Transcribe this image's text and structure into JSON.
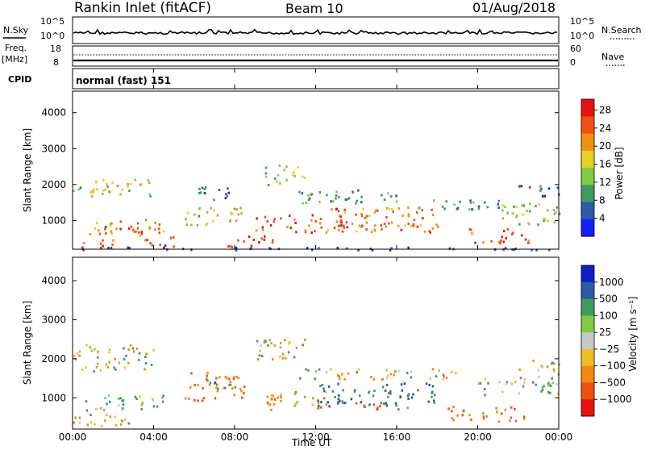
{
  "header": {
    "station": "Rankin Inlet (fitACF)",
    "beam": "Beam 10",
    "date": "01/Aug/2018"
  },
  "nsky_panel": {
    "left_label": "N.Sky",
    "right_label": "N.Search",
    "ticks_left": [
      "10^5",
      "10^0"
    ],
    "ticks_right": [
      "10^5",
      "10^0"
    ]
  },
  "freq_panel": {
    "left_label_1": "Freq.",
    "left_label_2": "[MHz]",
    "right_label": "Nave",
    "ticks_left": [
      "18",
      "8"
    ],
    "ticks_right": [
      "60",
      "0"
    ]
  },
  "cpid": {
    "label": "CPID",
    "value": "normal (fast) 151"
  },
  "x_axis": {
    "label": "Time UT",
    "ticks": [
      "00:00",
      "04:00",
      "08:00",
      "12:00",
      "16:00",
      "20:00",
      "00:00"
    ]
  },
  "colors": {
    "power_scale": [
      "#1020ff",
      "#2a5aa8",
      "#3e9a60",
      "#80cc40",
      "#e8d020",
      "#f09010",
      "#f05010",
      "#e81010"
    ],
    "velocity_scale": [
      "#e81010",
      "#f05010",
      "#f08a10",
      "#f0c020",
      "#c8c8c8",
      "#80cc40",
      "#3e9a60",
      "#2a5aa8",
      "#1020c0"
    ]
  },
  "chart_data": [
    {
      "type": "heatmap",
      "name": "power",
      "ylabel": "Slant Range [km]",
      "yticks": [
        "1000",
        "2000",
        "3000",
        "4000"
      ],
      "ylim": [
        200,
        4600
      ],
      "xlim": [
        0,
        24
      ],
      "colorbar_label": "Power [dB]",
      "colorbar_ticks": [
        "4",
        "8",
        "12",
        "16",
        "20",
        "24",
        "28"
      ],
      "colorbar_range": [
        0,
        30
      ],
      "bands": [
        {
          "t0": 0.0,
          "t1": 3.8,
          "r0": 1700,
          "r1": 2200,
          "v": 15
        },
        {
          "t0": 0.5,
          "t1": 2.5,
          "r0": 1800,
          "r1": 2000,
          "v": 22
        },
        {
          "t0": 0.8,
          "t1": 4.5,
          "r0": 600,
          "r1": 1100,
          "v": 20
        },
        {
          "t0": 1.5,
          "t1": 3.5,
          "r0": 700,
          "r1": 900,
          "v": 27
        },
        {
          "t0": 0.0,
          "t1": 2.0,
          "r0": 250,
          "r1": 500,
          "v": 26
        },
        {
          "t0": 3.5,
          "t1": 5.0,
          "r0": 300,
          "r1": 600,
          "v": 24
        },
        {
          "t0": 5.5,
          "t1": 8.5,
          "r0": 900,
          "r1": 1400,
          "v": 18
        },
        {
          "t0": 6.0,
          "t1": 8.0,
          "r0": 1600,
          "r1": 2000,
          "v": 6
        },
        {
          "t0": 7.5,
          "t1": 10.0,
          "r0": 250,
          "r1": 600,
          "v": 28
        },
        {
          "t0": 9.0,
          "t1": 12.0,
          "r0": 650,
          "r1": 1200,
          "v": 25
        },
        {
          "t0": 9.5,
          "t1": 11.5,
          "r0": 2000,
          "r1": 2600,
          "v": 14
        },
        {
          "t0": 11.0,
          "t1": 16.0,
          "r0": 1500,
          "r1": 1900,
          "v": 10
        },
        {
          "t0": 12.0,
          "t1": 18.0,
          "r0": 700,
          "r1": 1400,
          "v": 22
        },
        {
          "t0": 13.0,
          "t1": 17.0,
          "r0": 800,
          "r1": 1000,
          "v": 27
        },
        {
          "t0": 17.0,
          "t1": 22.0,
          "r0": 1300,
          "r1": 1600,
          "v": 9
        },
        {
          "t0": 19.5,
          "t1": 22.5,
          "r0": 400,
          "r1": 800,
          "v": 25
        },
        {
          "t0": 21.0,
          "t1": 24.0,
          "r0": 900,
          "r1": 1500,
          "v": 14
        },
        {
          "t0": 22.0,
          "t1": 24.0,
          "r0": 1700,
          "r1": 2000,
          "v": 6
        },
        {
          "t0": 0.0,
          "t1": 24.0,
          "r0": 200,
          "r1": 280,
          "v": 3
        }
      ]
    },
    {
      "type": "heatmap",
      "name": "velocity",
      "ylabel": "Slant Range [km]",
      "yticks": [
        "1000",
        "2000",
        "3000",
        "4000"
      ],
      "ylim": [
        200,
        4600
      ],
      "xlim": [
        0,
        24
      ],
      "colorbar_label": "Velocity [m s⁻¹]",
      "colorbar_ticks": [
        "1000",
        "500",
        "100",
        "25",
        "−25",
        "−100",
        "−500",
        "−1000"
      ],
      "bands": [
        {
          "t0": 0.0,
          "t1": 4.0,
          "r0": 1700,
          "r1": 2400,
          "v": 0
        },
        {
          "t0": 0.5,
          "t1": 4.5,
          "r0": 650,
          "r1": 1100,
          "v": 150
        },
        {
          "t0": 0.0,
          "t1": 3.0,
          "r0": 300,
          "r1": 600,
          "v": -80
        },
        {
          "t0": 5.5,
          "t1": 8.5,
          "r0": 900,
          "r1": 1700,
          "v": -400
        },
        {
          "t0": 6.5,
          "t1": 8.0,
          "r0": 1200,
          "r1": 1500,
          "v": 300
        },
        {
          "t0": 9.0,
          "t1": 11.5,
          "r0": 2000,
          "r1": 2600,
          "v": 0
        },
        {
          "t0": 9.5,
          "t1": 12.5,
          "r0": 700,
          "r1": 1200,
          "v": -300
        },
        {
          "t0": 12.0,
          "t1": 18.0,
          "r0": 800,
          "r1": 1400,
          "v": 500
        },
        {
          "t0": 13.5,
          "t1": 16.5,
          "r0": 700,
          "r1": 900,
          "v": -600
        },
        {
          "t0": 11.0,
          "t1": 19.0,
          "r0": 1500,
          "r1": 1800,
          "v": 0
        },
        {
          "t0": 18.5,
          "t1": 22.5,
          "r0": 400,
          "r1": 800,
          "v": -500
        },
        {
          "t0": 20.0,
          "t1": 24.0,
          "r0": 1100,
          "r1": 1600,
          "v": 150
        },
        {
          "t0": 22.0,
          "t1": 24.0,
          "r0": 1600,
          "r1": 2000,
          "v": 0
        }
      ]
    }
  ]
}
